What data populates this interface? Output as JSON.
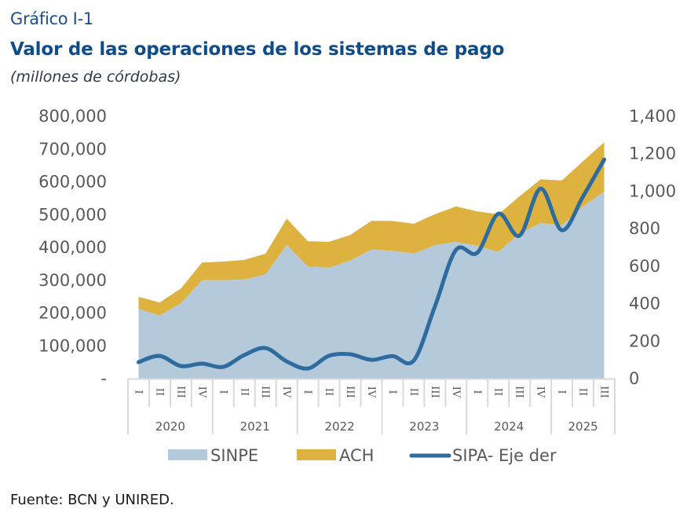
{
  "header": {
    "label": "Gráfico I-1",
    "title": "Valor de las operaciones de los sistemas de pago",
    "subtitle": "(millones de córdobas)"
  },
  "source": "Fuente: BCN y UNIRED.",
  "colors": {
    "sinpe": "#b4c9da",
    "ach": "#deb23f",
    "sipa": "#2e6b9e",
    "axis": "#d9d9d9",
    "text": "#595959"
  },
  "chart_data": {
    "type": "area",
    "title": "Valor de las operaciones de los sistemas de pago",
    "subtitle": "(millones de córdobas)",
    "categories": [
      "I",
      "II",
      "III",
      "IV",
      "I",
      "II",
      "III",
      "IV",
      "I",
      "II",
      "III",
      "IV",
      "I",
      "II",
      "III",
      "IV",
      "I",
      "II",
      "III",
      "IV",
      "I",
      "II",
      "III"
    ],
    "years": [
      {
        "label": "2020",
        "count": 4
      },
      {
        "label": "2021",
        "count": 4
      },
      {
        "label": "2022",
        "count": 4
      },
      {
        "label": "2023",
        "count": 4
      },
      {
        "label": "2024",
        "count": 4
      },
      {
        "label": "2025",
        "count": 3
      }
    ],
    "stacked": true,
    "series": [
      {
        "name": "SINPE",
        "type": "area",
        "axis": "left",
        "values": [
          213000,
          192000,
          230000,
          300000,
          300000,
          302000,
          318000,
          408000,
          342000,
          338000,
          360000,
          393000,
          390000,
          381000,
          407000,
          417000,
          405000,
          386000,
          443000,
          474000,
          467000,
          525000,
          570000
        ]
      },
      {
        "name": "ACH",
        "type": "area",
        "axis": "left",
        "values": [
          36000,
          40000,
          45000,
          54000,
          57000,
          60000,
          63000,
          80000,
          77000,
          79000,
          78000,
          88000,
          91000,
          91000,
          94000,
          108000,
          105000,
          115000,
          113000,
          134000,
          137000,
          138000,
          151000
        ]
      },
      {
        "name": "SIPA- Eje der",
        "type": "line",
        "axis": "right",
        "values": [
          88,
          121,
          67,
          80,
          63,
          126,
          163,
          92,
          54,
          122,
          130,
          100,
          120,
          96,
          385,
          687,
          671,
          880,
          763,
          1014,
          792,
          972,
          1169
        ]
      }
    ],
    "yleft": {
      "ticks": [
        "-",
        "100,000",
        "200,000",
        "300,000",
        "400,000",
        "500,000",
        "600,000",
        "700,000",
        "800,000"
      ],
      "lim": [
        0,
        800000
      ],
      "step": 100000
    },
    "yright": {
      "ticks": [
        "0",
        "200",
        "400",
        "600",
        "800",
        "1,000",
        "1,200",
        "1,400"
      ],
      "lim": [
        0,
        1400
      ],
      "step": 200
    },
    "xlabel": "",
    "ylabel": "",
    "grid": false,
    "legend": {
      "position": "bottom",
      "entries": [
        "SINPE",
        "ACH",
        "SIPA- Eje der"
      ]
    }
  }
}
